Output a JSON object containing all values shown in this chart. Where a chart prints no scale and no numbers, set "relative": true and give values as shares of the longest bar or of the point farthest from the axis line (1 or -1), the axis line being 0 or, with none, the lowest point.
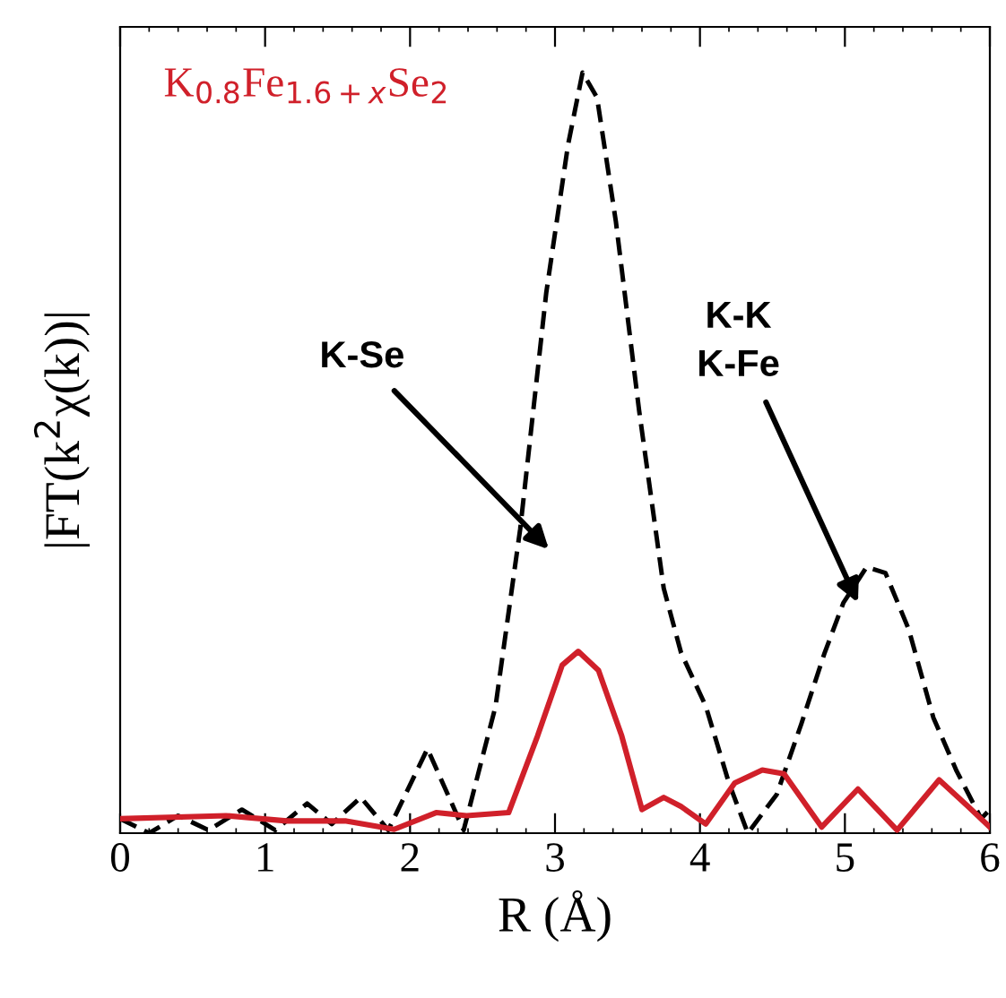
{
  "chart_data": {
    "type": "line",
    "relative": true,
    "xlabel": "R (Å)",
    "ylabel": "|FT(k$^{2}$χ(k))|",
    "xlim": [
      0,
      6
    ],
    "xticks": [
      0,
      1,
      2,
      3,
      4,
      5,
      6
    ],
    "tick_labels": "x",
    "grid": false,
    "legend": false,
    "series": [
      {
        "color": "#000000",
        "line_style": "dashed",
        "x": [
          0,
          0.2,
          0.4,
          0.61,
          0.84,
          1.07,
          1.29,
          1.46,
          1.66,
          1.85,
          2.12,
          2.37,
          2.59,
          2.76,
          2.94,
          3.09,
          3.19,
          3.29,
          3.42,
          3.58,
          3.75,
          3.87,
          4.04,
          4.2,
          4.33,
          4.53,
          4.7,
          4.86,
          4.99,
          5.15,
          5.28,
          5.44,
          5.61,
          5.77,
          5.94,
          6.0
        ],
        "values": [
          0.019,
          0,
          0.023,
          0.004,
          0.031,
          0.004,
          0.039,
          0.012,
          0.047,
          0.004,
          0.111,
          0.004,
          0.167,
          0.4,
          0.711,
          0.905,
          1.0,
          0.967,
          0.804,
          0.556,
          0.322,
          0.237,
          0.167,
          0.066,
          0,
          0.051,
          0.144,
          0.237,
          0.303,
          0.35,
          0.342,
          0.268,
          0.152,
          0.082,
          0.019,
          0.031
        ]
      },
      {
        "name": "K$_{0.8}$Fe$_{1.6+x}$Se$_{2}$",
        "color": "#d0202a",
        "line_style": "solid",
        "x": [
          0,
          0.73,
          1.15,
          1.56,
          1.89,
          2.18,
          2.39,
          2.68,
          2.88,
          3.05,
          3.16,
          3.3,
          3.46,
          3.6,
          3.75,
          3.87,
          4.04,
          4.24,
          4.43,
          4.58,
          4.84,
          5.09,
          5.36,
          5.65,
          5.85,
          6.0
        ],
        "values": [
          0.019,
          0.023,
          0.016,
          0.016,
          0.005,
          0.027,
          0.023,
          0.027,
          0.128,
          0.221,
          0.239,
          0.214,
          0.128,
          0.031,
          0.047,
          0.035,
          0.012,
          0.066,
          0.083,
          0.078,
          0.008,
          0.058,
          0.004,
          0.07,
          0.035,
          0.008
        ]
      }
    ],
    "annotations": [
      "K-Se",
      {
        "text": "K-K\nK-Fe",
        "x": 5.09,
        "y": 0.303
      }
    ]
  }
}
